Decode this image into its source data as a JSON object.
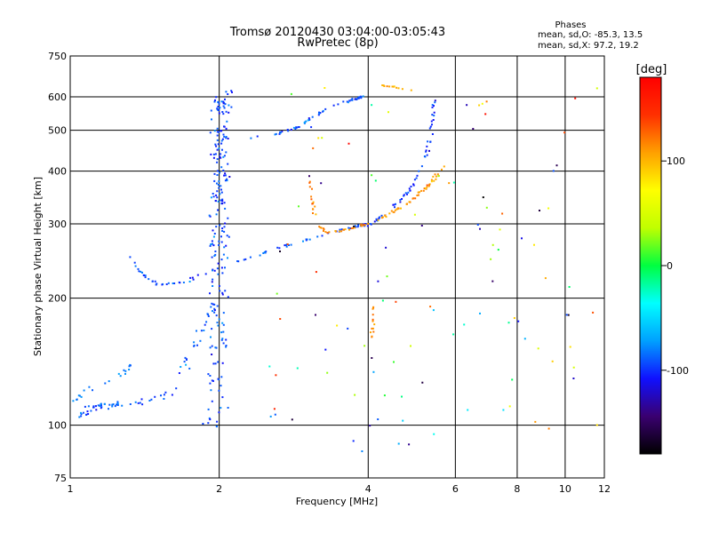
{
  "chart_data": {
    "type": "scatter",
    "title": "Tromsø 20120430 03:04:00-03:05:43",
    "subtitle": "RwPretec (8p)",
    "xlabel": "Frequency [MHz]",
    "ylabel": "Stationary phase Virtual Height [km]",
    "x_scale": "log",
    "y_scale": "log",
    "xlim": [
      1,
      12
    ],
    "ylim": [
      75,
      750
    ],
    "x_ticks": [
      1,
      2,
      4,
      6,
      8,
      10,
      12
    ],
    "y_ticks": [
      75,
      100,
      200,
      300,
      400,
      500,
      600,
      750
    ],
    "grid": true,
    "phase_stats": {
      "heading": "Phases",
      "line1": "mean, sd,O: -85.3, 13.5",
      "line2": "mean, sd,X:  97.2, 19.2"
    },
    "colorbar": {
      "unit": "[deg]",
      "range": [
        -180,
        180
      ],
      "ticks": [
        100,
        0,
        -100
      ],
      "stops": [
        "#000000",
        "#3a0070",
        "#1010ff",
        "#00a0ff",
        "#00ffff",
        "#00ff40",
        "#c0ff00",
        "#ffff00",
        "#ffa000",
        "#ff3000",
        "#ff0000"
      ]
    },
    "traces": [
      {
        "points": [
          [
            2.01,
            100
          ],
          [
            2.02,
            140
          ],
          [
            2.02,
            200
          ],
          [
            2.03,
            260
          ],
          [
            2.04,
            330
          ],
          [
            2.05,
            420
          ],
          [
            2.05,
            520
          ],
          [
            2.06,
            630
          ]
        ],
        "phase": -95,
        "spread": 0.04,
        "count": 130
      },
      {
        "points": [
          [
            1.9,
            100
          ],
          [
            1.93,
            150
          ],
          [
            1.95,
            220
          ],
          [
            1.96,
            300
          ],
          [
            1.97,
            400
          ],
          [
            1.98,
            500
          ],
          [
            1.98,
            600
          ]
        ],
        "phase": -95,
        "spread": 0.03,
        "count": 90
      },
      {
        "points": [
          [
            1.45,
            220
          ],
          [
            1.55,
            215
          ],
          [
            1.7,
            218
          ],
          [
            1.85,
            228
          ],
          [
            2.2,
            245
          ],
          [
            2.6,
            262
          ],
          [
            3.0,
            275
          ],
          [
            3.4,
            287
          ],
          [
            3.8,
            296
          ],
          [
            4.0,
            300
          ]
        ],
        "phase": -95,
        "spread": 0.02,
        "count": 70
      },
      {
        "points": [
          [
            1.3,
            255
          ],
          [
            1.38,
            232
          ],
          [
            1.44,
            222
          ]
        ],
        "phase": -85,
        "spread": 0.01,
        "count": 12
      },
      {
        "points": [
          [
            2.3,
            480
          ],
          [
            2.6,
            490
          ],
          [
            2.9,
            510
          ],
          [
            3.1,
            540
          ],
          [
            3.4,
            570
          ],
          [
            3.7,
            590
          ],
          [
            3.9,
            600
          ]
        ],
        "phase": -90,
        "spread": 0.01,
        "count": 60
      },
      {
        "points": [
          [
            4.05,
            300
          ],
          [
            4.4,
            320
          ],
          [
            4.8,
            355
          ],
          [
            5.1,
            400
          ],
          [
            5.3,
            460
          ],
          [
            5.4,
            520
          ],
          [
            5.45,
            600
          ]
        ],
        "phase": -100,
        "spread": 0.012,
        "count": 60
      },
      {
        "points": [
          [
            4.05,
            300
          ],
          [
            4.4,
            315
          ],
          [
            4.8,
            335
          ],
          [
            5.1,
            355
          ],
          [
            5.4,
            380
          ],
          [
            5.7,
            410
          ]
        ],
        "phase": 110,
        "spread": 0.012,
        "count": 50
      },
      {
        "points": [
          [
            3.05,
            380
          ],
          [
            3.1,
            340
          ],
          [
            3.15,
            300
          ],
          [
            3.3,
            285
          ],
          [
            3.6,
            290
          ],
          [
            4.0,
            300
          ]
        ],
        "phase": 115,
        "spread": 0.015,
        "count": 40
      },
      {
        "points": [
          [
            1.05,
            105
          ],
          [
            1.1,
            110
          ],
          [
            1.2,
            112
          ],
          [
            1.4,
            113
          ],
          [
            1.6,
            120
          ],
          [
            1.8,
            160
          ],
          [
            1.95,
            200
          ]
        ],
        "phase": -90,
        "spread": 0.035,
        "count": 80
      },
      {
        "points": [
          [
            1.03,
            115
          ],
          [
            1.1,
            122
          ],
          [
            1.25,
            130
          ],
          [
            1.35,
            140
          ]
        ],
        "phase": -80,
        "spread": 0.02,
        "count": 20
      },
      {
        "points": [
          [
            4.2,
            640
          ],
          [
            4.6,
            630
          ],
          [
            4.9,
            620
          ]
        ],
        "phase": 100,
        "spread": 0.01,
        "count": 12
      },
      {
        "points": [
          [
            4.05,
            155
          ],
          [
            4.1,
            175
          ],
          [
            4.1,
            200
          ]
        ],
        "phase": 110,
        "spread": 0.01,
        "count": 14
      }
    ],
    "noise": {
      "xlim": [
        2.5,
        11.8
      ],
      "ylim": [
        85,
        650
      ],
      "count": 110
    }
  }
}
